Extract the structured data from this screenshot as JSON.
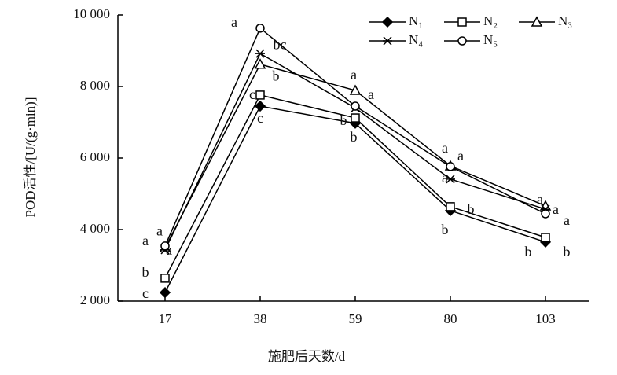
{
  "chart_data": {
    "type": "line",
    "x_label": "施肥后天数/d",
    "y_label": "POD活性/[U/(g·min)]",
    "categories": [
      "17",
      "38",
      "59",
      "80",
      "103"
    ],
    "series": [
      {
        "name": "N₁",
        "color": "#000000",
        "marker": "diamond-filled",
        "values": [
          2240,
          7450,
          6970,
          4530,
          3650
        ]
      },
      {
        "name": "N₂",
        "color": "#000000",
        "marker": "square",
        "values": [
          2640,
          7760,
          7120,
          4640,
          3780
        ]
      },
      {
        "name": "N₃",
        "color": "#000000",
        "marker": "triangle",
        "values": [
          3490,
          8620,
          7890,
          5780,
          4660
        ]
      },
      {
        "name": "N₄",
        "color": "#000000",
        "marker": "star",
        "values": [
          3430,
          8920,
          7400,
          5410,
          4570
        ]
      },
      {
        "name": "N₅",
        "color": "#000000",
        "marker": "circle",
        "values": [
          3540,
          9630,
          7450,
          5760,
          4440
        ]
      }
    ],
    "ylim": [
      2000,
      10000
    ],
    "yticks": [
      {
        "value": 2000,
        "label": "2 000"
      },
      {
        "value": 4000,
        "label": "4 000"
      },
      {
        "value": 6000,
        "label": "6 000"
      },
      {
        "value": 8000,
        "label": "8 000"
      },
      {
        "value": 10000,
        "label": "10 000"
      }
    ],
    "legend": "upper right",
    "annotations": [
      {
        "text": "a",
        "x": "17",
        "y": 3650
      },
      {
        "text": "a",
        "x": "17",
        "y": 3930
      },
      {
        "text": "a",
        "x": "17",
        "y": 3390
      },
      {
        "text": "b",
        "x": "17",
        "y": 2770
      },
      {
        "text": "c",
        "x": "17",
        "y": 2180
      },
      {
        "text": "a",
        "x": "38",
        "y": 9760
      },
      {
        "text": "bc",
        "x": "38",
        "y": 9140
      },
      {
        "text": "b",
        "x": "38",
        "y": 8260
      },
      {
        "text": "c",
        "x": "38",
        "y": 7740
      },
      {
        "text": "c",
        "x": "38",
        "y": 7080
      },
      {
        "text": "a",
        "x": "59",
        "y": 8290
      },
      {
        "text": "a",
        "x": "59",
        "y": 7740
      },
      {
        "text": "b",
        "x": "59",
        "y": 7010
      },
      {
        "text": "b",
        "x": "59",
        "y": 6550
      },
      {
        "text": "a",
        "x": "80",
        "y": 6240
      },
      {
        "text": "a",
        "x": "80",
        "y": 6020
      },
      {
        "text": "a",
        "x": "80",
        "y": 5410
      },
      {
        "text": "b",
        "x": "80",
        "y": 4530
      },
      {
        "text": "b",
        "x": "80",
        "y": 3960
      },
      {
        "text": "a",
        "x": "103",
        "y": 4810
      },
      {
        "text": "a",
        "x": "103",
        "y": 4530
      },
      {
        "text": "a",
        "x": "103",
        "y": 4220
      },
      {
        "text": "b",
        "x": "103",
        "y": 3340
      },
      {
        "text": "b",
        "x": "103",
        "y": 3340
      }
    ]
  }
}
